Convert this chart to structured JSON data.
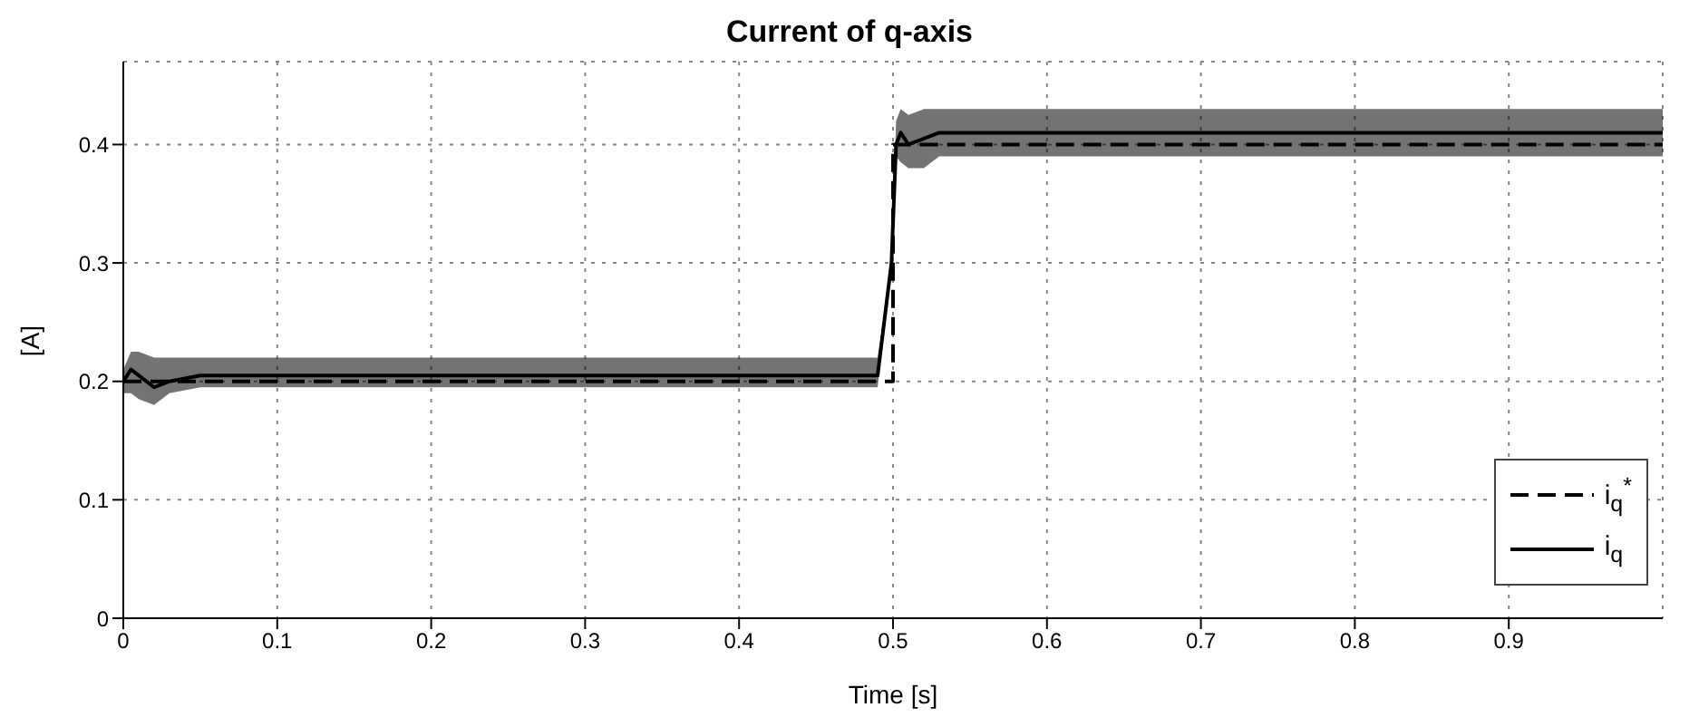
{
  "chart_data": {
    "type": "line",
    "title": "Current of q-axis",
    "xlabel": "Time [s]",
    "ylabel": "[A]",
    "xlim": [
      0,
      1
    ],
    "xticks": [
      0,
      0.1,
      0.2,
      0.3,
      0.4,
      0.5,
      0.6,
      0.7,
      0.8,
      0.9
    ],
    "ylim": [
      0,
      0.47
    ],
    "yticks": [
      0,
      0.1,
      0.2,
      0.3,
      0.4
    ],
    "grid": true,
    "legend": "bottom right",
    "series": [
      {
        "name": "i$_{q}$$^{*}$",
        "color": "#000000",
        "line_style": "dashed",
        "x": [
          0,
          0.5,
          0.5,
          1
        ],
        "values": [
          0.2,
          0.2,
          0.4,
          0.4
        ]
      },
      {
        "name": "i$_{q}$",
        "color": "#000000",
        "line_style": "solid",
        "x": [
          0,
          0.005,
          0.01,
          0.02,
          0.03,
          0.05,
          0.1,
          0.2,
          0.3,
          0.4,
          0.49,
          0.499,
          0.502,
          0.505,
          0.51,
          0.52,
          0.53,
          0.55,
          0.6,
          0.7,
          0.8,
          0.9,
          1.0
        ],
        "values": [
          0.2,
          0.21,
          0.205,
          0.195,
          0.2,
          0.205,
          0.205,
          0.205,
          0.205,
          0.205,
          0.205,
          0.3,
          0.4,
          0.41,
          0.4,
          0.405,
          0.41,
          0.41,
          0.41,
          0.41,
          0.41,
          0.41,
          0.41
        ],
        "lower": [
          0.19,
          0.19,
          0.185,
          0.18,
          0.19,
          0.195,
          0.195,
          0.195,
          0.195,
          0.195,
          0.195,
          0.3,
          0.39,
          0.385,
          0.38,
          0.38,
          0.39,
          0.39,
          0.39,
          0.39,
          0.39,
          0.39,
          0.39
        ],
        "upper": [
          0.21,
          0.225,
          0.225,
          0.22,
          0.22,
          0.22,
          0.22,
          0.22,
          0.22,
          0.22,
          0.22,
          0.3,
          0.42,
          0.43,
          0.425,
          0.43,
          0.43,
          0.43,
          0.43,
          0.43,
          0.43,
          0.43,
          0.43
        ]
      }
    ]
  }
}
